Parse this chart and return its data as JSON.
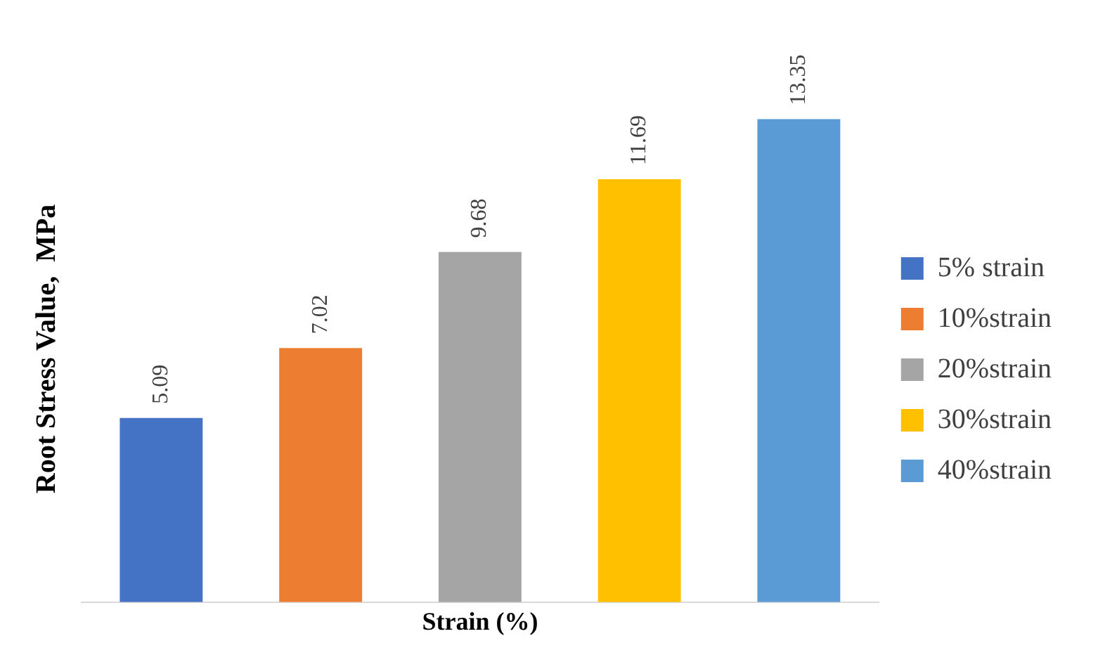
{
  "chart_data": {
    "type": "bar",
    "categories": [
      null,
      null,
      null,
      null,
      null
    ],
    "stacked": true,
    "series": [
      {
        "name": "5% strain",
        "color": "#4472c4",
        "values": [
          5.09,
          null,
          null,
          null,
          null
        ]
      },
      {
        "name": "10%strain",
        "color": "#ed7d31",
        "values": [
          null,
          7.02,
          null,
          null,
          null
        ]
      },
      {
        "name": "20%strain",
        "color": "#a5a5a5",
        "values": [
          null,
          null,
          9.68,
          null,
          null
        ]
      },
      {
        "name": "30%strain",
        "color": "#ffc000",
        "values": [
          null,
          null,
          null,
          11.69,
          null
        ]
      },
      {
        "name": "40%strain",
        "color": "#5b9bd5",
        "values": [
          null,
          null,
          null,
          null,
          13.35
        ]
      }
    ],
    "xlabel": "Strain (%)",
    "ylabel": "Root Stress Value,  MPa",
    "data_labels": true,
    "legend": "right",
    "grid": false,
    "tick_labels": false
  }
}
